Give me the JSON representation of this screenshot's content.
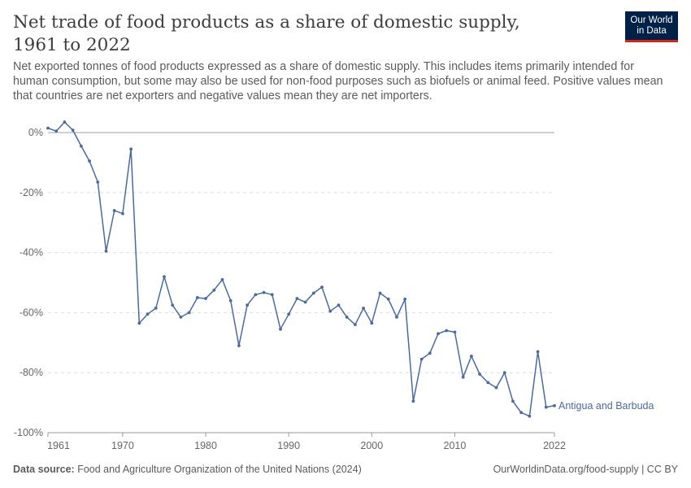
{
  "header": {
    "title": "Net trade of food products as a share of domestic supply, 1961 to 2022",
    "subtitle": "Net exported tonnes of food products expressed as a share of domestic supply. This includes items primarily intended for human consumption, but some may also be used for non-food purposes such as biofuels or animal feed. Positive values mean that countries are net exporters and negative values mean they are net importers."
  },
  "logo": {
    "line1": "Our World",
    "line2": "in Data",
    "bg_color": "#002147",
    "accent_color": "#ce261e"
  },
  "footer": {
    "source_label": "Data source:",
    "source_text": "Food and Agriculture Organization of the United Nations (2024)",
    "right_text": "OurWorldinData.org/food-supply | CC BY"
  },
  "chart_data": {
    "type": "line",
    "title": "Net trade of food products as a share of domestic supply, 1961 to 2022",
    "xlabel": "",
    "ylabel": "",
    "xlim": [
      1961,
      2022
    ],
    "ylim": [
      -100,
      0
    ],
    "x_ticks": [
      1961,
      1970,
      1980,
      1990,
      2000,
      2010,
      2022
    ],
    "y_ticks": [
      0,
      -20,
      -40,
      -60,
      -80,
      -100
    ],
    "y_tick_labels": [
      "0%",
      "-20%",
      "-40%",
      "-60%",
      "-80%",
      "-100%"
    ],
    "grid": "horizontal dashed",
    "line_color": "#4c6a9c",
    "series": [
      {
        "name": "Antigua and Barbuda",
        "x": [
          1961,
          1962,
          1963,
          1964,
          1965,
          1966,
          1967,
          1968,
          1969,
          1970,
          1971,
          1972,
          1973,
          1974,
          1975,
          1976,
          1977,
          1978,
          1979,
          1980,
          1981,
          1982,
          1983,
          1984,
          1985,
          1986,
          1987,
          1988,
          1989,
          1990,
          1991,
          1992,
          1993,
          1994,
          1995,
          1996,
          1997,
          1998,
          1999,
          2000,
          2001,
          2002,
          2003,
          2004,
          2005,
          2006,
          2007,
          2008,
          2009,
          2010,
          2011,
          2012,
          2013,
          2014,
          2015,
          2016,
          2017,
          2018,
          2019,
          2020,
          2021,
          2022
        ],
        "values": [
          1.5,
          0.5,
          3.5,
          0.8,
          -4.5,
          -9.5,
          -16.5,
          -39.5,
          -26,
          -27,
          -5.5,
          -63.5,
          -60.5,
          -58.5,
          -48,
          -57.5,
          -61.5,
          -60,
          -55,
          -55.3,
          -52.5,
          -49,
          -56,
          -71,
          -57.5,
          -54,
          -53.3,
          -54,
          -65.5,
          -60.5,
          -55.3,
          -56.5,
          -53.5,
          -51.5,
          -59.5,
          -57.5,
          -61.5,
          -64,
          -58.5,
          -63.5,
          -53.5,
          -55.5,
          -61.5,
          -55.5,
          -89.5,
          -75.5,
          -73.5,
          -67,
          -66,
          -66.5,
          -81.5,
          -74.5,
          -80.5,
          -83.3,
          -85,
          -80,
          -89.5,
          -93.3,
          -94.5,
          -73,
          -91.5,
          -91
        ]
      }
    ]
  }
}
